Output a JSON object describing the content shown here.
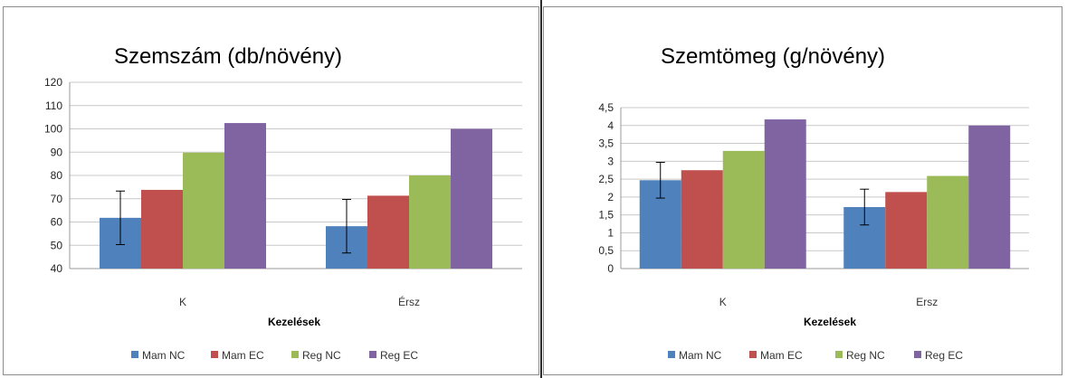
{
  "chart_data": [
    {
      "type": "bar",
      "title": "Szemszám (db/növény)",
      "xlabel": "Kezelések",
      "ylabel": "",
      "categories": [
        "K",
        "Érsz"
      ],
      "ylim": [
        40,
        120
      ],
      "yticks": [
        "40",
        "50",
        "60",
        "70",
        "80",
        "90",
        "100",
        "110",
        "120"
      ],
      "grid": true,
      "legend": "bottom",
      "series": [
        {
          "name": "Mam NC",
          "values": [
            61.8,
            58.2
          ],
          "color": "#4f81bd",
          "error": [
            11.5,
            11.5
          ]
        },
        {
          "name": "Mam EC",
          "values": [
            73.8,
            71.3
          ],
          "color": "#c0504d"
        },
        {
          "name": "Reg NC",
          "values": [
            89.8,
            80.0
          ],
          "color": "#9bbb59"
        },
        {
          "name": "Reg EC",
          "values": [
            102.5,
            100.0
          ],
          "color": "#8064a2"
        }
      ]
    },
    {
      "type": "bar",
      "title": "Szemtömeg (g/növény)",
      "xlabel": "Kezelések",
      "ylabel": "",
      "categories": [
        "K",
        "Ersz"
      ],
      "ylim": [
        0,
        4.5
      ],
      "yticks": [
        "0",
        "0,5",
        "1",
        "1,5",
        "2",
        "2,5",
        "3",
        "3,5",
        "4",
        "4,5"
      ],
      "grid": true,
      "legend": "bottom",
      "series": [
        {
          "name": "Mam NC",
          "values": [
            2.47,
            1.72
          ],
          "color": "#4f81bd",
          "error": [
            0.5,
            0.5
          ]
        },
        {
          "name": "Mam EC",
          "values": [
            2.75,
            2.14
          ],
          "color": "#c0504d"
        },
        {
          "name": "Reg NC",
          "values": [
            3.29,
            2.59
          ],
          "color": "#9bbb59"
        },
        {
          "name": "Reg EC",
          "values": [
            4.17,
            4.0
          ],
          "color": "#8064a2"
        }
      ]
    }
  ]
}
